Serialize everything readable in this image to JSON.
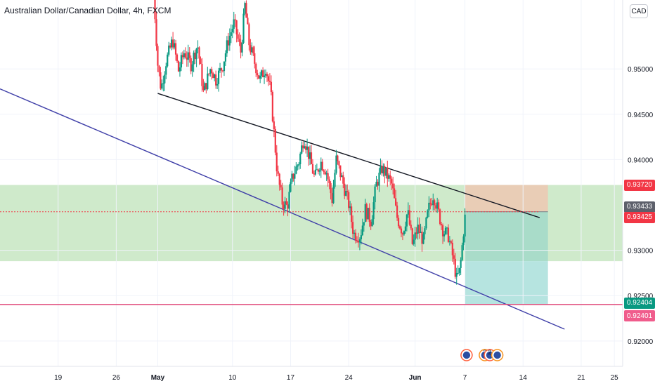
{
  "header": {
    "title": "Australian Dollar/Canadian Dollar, 4h, FXCM",
    "currency": "CAD"
  },
  "chart_data": {
    "type": "candlestick",
    "title": "Australian Dollar/Canadian Dollar, 4h, FXCM",
    "y_axis": {
      "position": "right",
      "ticks": [
        "0.95000",
        "0.94500",
        "0.94000",
        "0.93000",
        "0.92500",
        "0.92000"
      ],
      "tick_values": [
        0.95,
        0.945,
        0.94,
        0.93,
        0.925,
        0.92
      ],
      "range": [
        0.9172,
        0.9576
      ]
    },
    "x_axis": {
      "ticks": [
        "19",
        "26",
        "May",
        "10",
        "17",
        "24",
        "Jun",
        "7",
        "14",
        "21",
        "25"
      ],
      "tick_days": [
        -12,
        -5,
        0,
        9,
        16,
        23,
        31,
        37,
        44,
        51,
        55
      ],
      "tick_bold": [
        false,
        false,
        true,
        false,
        false,
        false,
        true,
        false,
        false,
        false,
        false
      ],
      "range_days": [
        -19,
        56
      ],
      "note": "days relative to May 1 for positioning only"
    },
    "price_labels": [
      {
        "text": "0.93720",
        "value": 0.9372,
        "color": "#f23645"
      },
      {
        "text": "0.93433",
        "value": 0.93433,
        "color": "#5d606b"
      },
      {
        "text": "0.93425",
        "value": 0.93425,
        "color": "#f23645"
      },
      {
        "text": "0.92404",
        "value": 0.92404,
        "color": "#089981"
      },
      {
        "text": "0.92401",
        "value": 0.92401,
        "color": "#f05c8c"
      }
    ],
    "zones": [
      {
        "name": "support-resistance zone",
        "from_day": -19,
        "to_day": 56,
        "top": 0.9372,
        "bottom": 0.9288,
        "color": "#cfeacb"
      }
    ],
    "position": {
      "type": "short",
      "from_day": 37,
      "to_day": 47,
      "entry": 0.93425,
      "stop": 0.9372,
      "target": 0.92404,
      "loss_color": "#e9cdb6",
      "profit_color": "#a9dcc9",
      "profit_extension_color": "#b6e4e0"
    },
    "lines": [
      {
        "name": "upper trendline",
        "color": "#131722",
        "points": [
          [
            0,
            0.9473
          ],
          [
            46,
            0.9336
          ]
        ]
      },
      {
        "name": "lower channel line",
        "color": "#3f3fa8",
        "points": [
          [
            -19,
            0.9478
          ],
          [
            49,
            0.9213
          ]
        ]
      },
      {
        "name": "horizontal level",
        "color": "#e04a7a",
        "points": [
          [
            -19,
            0.92402
          ],
          [
            56,
            0.92402
          ]
        ]
      },
      {
        "name": "current price line",
        "color": "#f23645",
        "dashed": true,
        "points": [
          [
            -19,
            0.93425
          ],
          [
            46,
            0.93425
          ]
        ]
      }
    ],
    "price_path": [
      [
        -0.5,
        0.9586
      ],
      [
        0,
        0.9505
      ],
      [
        0.4,
        0.9478
      ],
      [
        1,
        0.9508
      ],
      [
        1.8,
        0.9532
      ],
      [
        2.5,
        0.9498
      ],
      [
        3.2,
        0.9519
      ],
      [
        4,
        0.9505
      ],
      [
        4.8,
        0.9527
      ],
      [
        5.5,
        0.9474
      ],
      [
        6.4,
        0.9502
      ],
      [
        7,
        0.9488
      ],
      [
        7.8,
        0.9503
      ],
      [
        8.5,
        0.9532
      ],
      [
        9.2,
        0.9551
      ],
      [
        10,
        0.9519
      ],
      [
        10.5,
        0.957
      ],
      [
        11,
        0.9528
      ],
      [
        11.5,
        0.9512
      ],
      [
        12.3,
        0.9488
      ],
      [
        13,
        0.9502
      ],
      [
        13.6,
        0.9475
      ],
      [
        14,
        0.943
      ],
      [
        14.4,
        0.9385
      ],
      [
        15,
        0.9353
      ],
      [
        15.6,
        0.9348
      ],
      [
        16.2,
        0.938
      ],
      [
        17,
        0.9398
      ],
      [
        17.6,
        0.9425
      ],
      [
        18.2,
        0.9405
      ],
      [
        18.9,
        0.9379
      ],
      [
        19.6,
        0.9398
      ],
      [
        20.3,
        0.9388
      ],
      [
        21,
        0.9356
      ],
      [
        21.5,
        0.94
      ],
      [
        22.2,
        0.9378
      ],
      [
        23,
        0.9351
      ],
      [
        23.6,
        0.9318
      ],
      [
        24.4,
        0.9316
      ],
      [
        25,
        0.9345
      ],
      [
        25.7,
        0.9332
      ],
      [
        26.3,
        0.9372
      ],
      [
        27,
        0.939
      ],
      [
        27.6,
        0.9383
      ],
      [
        28.2,
        0.9372
      ],
      [
        28.8,
        0.9337
      ],
      [
        29.5,
        0.932
      ],
      [
        30.1,
        0.9343
      ],
      [
        30.7,
        0.9305
      ],
      [
        31.3,
        0.9325
      ],
      [
        32,
        0.931
      ],
      [
        32.6,
        0.9345
      ],
      [
        33.2,
        0.9362
      ],
      [
        33.8,
        0.9342
      ],
      [
        34.4,
        0.9321
      ],
      [
        35,
        0.9316
      ],
      [
        35.6,
        0.929
      ],
      [
        36,
        0.9268
      ],
      [
        36.4,
        0.9278
      ],
      [
        36.8,
        0.9318
      ],
      [
        37.1,
        0.9345
      ]
    ],
    "events": [
      {
        "day": 37.2,
        "text": ""
      },
      {
        "day": 39.4,
        "text": "2"
      },
      {
        "day": 40.0,
        "text": "2"
      },
      {
        "day": 40.9,
        "text": ""
      }
    ]
  }
}
